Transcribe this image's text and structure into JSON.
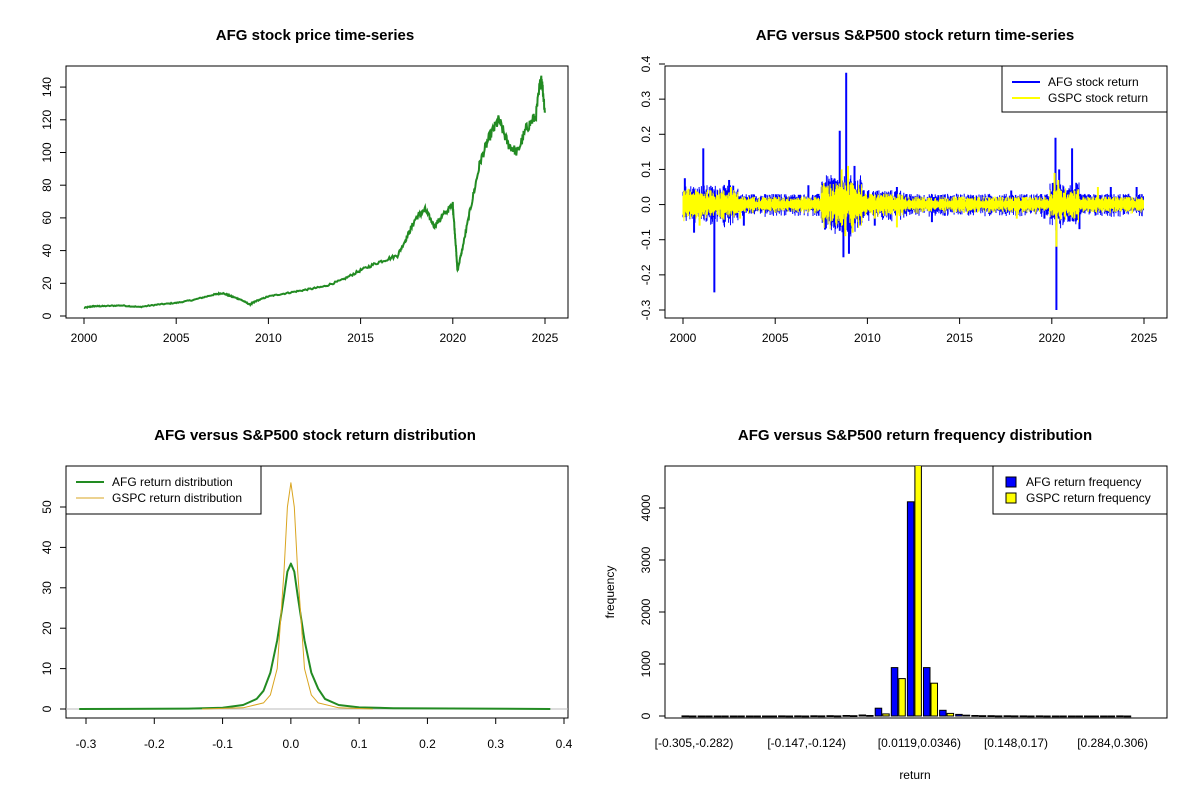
{
  "chart_data": [
    {
      "type": "line",
      "title": "AFG stock price time-series",
      "xlabel": "",
      "ylabel": "",
      "xlim": [
        2000,
        2025
      ],
      "ylim": [
        0,
        148
      ],
      "xticks": [
        "2000",
        "2005",
        "2010",
        "2015",
        "2020",
        "2025"
      ],
      "yticks": [
        "0",
        "20",
        "40",
        "60",
        "80",
        "100",
        "120",
        "140"
      ],
      "series": [
        {
          "color": "#228B22",
          "x": [
            2000,
            2000.5,
            2001,
            2002,
            2003,
            2004,
            2005,
            2006,
            2007,
            2007.5,
            2008,
            2008.5,
            2009,
            2009.3,
            2010,
            2011,
            2012,
            2013,
            2014,
            2015,
            2016,
            2017,
            2017.5,
            2018,
            2018.5,
            2019,
            2019.5,
            2020,
            2020.15,
            2020.25,
            2020.5,
            2021,
            2021.5,
            2022,
            2022.5,
            2023,
            2023.5,
            2024,
            2024.5,
            2024.8,
            2025
          ],
          "y": [
            5,
            6,
            6,
            6.5,
            5.5,
            7,
            8,
            10,
            13,
            14,
            12,
            10,
            7,
            9,
            12,
            14,
            16,
            18,
            22,
            28,
            33,
            37,
            48,
            60,
            65,
            55,
            62,
            68,
            45,
            28,
            40,
            68,
            95,
            110,
            120,
            105,
            100,
            115,
            122,
            147,
            125
          ]
        }
      ]
    },
    {
      "type": "line",
      "title": "AFG versus S&P500 stock return time-series",
      "xlabel": "",
      "ylabel": "",
      "xlim": [
        2000,
        2025
      ],
      "ylim": [
        -0.3,
        0.4
      ],
      "xticks": [
        "2000",
        "2005",
        "2010",
        "2015",
        "2020",
        "2025"
      ],
      "yticks": [
        "-0.3",
        "-0.2",
        "-0.1",
        "0.0",
        "0.1",
        "0.2",
        "0.3",
        "0.4"
      ],
      "legend": "top-right",
      "series": [
        {
          "name": "AFG stock return",
          "color": "#0000FF",
          "x": [
            2000.1,
            2000.6,
            2001.1,
            2001.7,
            2002.5,
            2003.3,
            2006.8,
            2007.7,
            2008.5,
            2008.7,
            2008.85,
            2009.0,
            2009.3,
            2010.4,
            2011.6,
            2013.5,
            2017.8,
            2019.6,
            2020.2,
            2020.25,
            2020.4,
            2021.1,
            2021.5,
            2023.2,
            2024.6
          ],
          "y": [
            0.075,
            -0.08,
            0.16,
            -0.25,
            0.07,
            -0.06,
            0.055,
            -0.07,
            0.21,
            -0.15,
            0.375,
            -0.14,
            0.11,
            -0.06,
            0.05,
            -0.05,
            0.04,
            -0.04,
            0.19,
            -0.3,
            0.1,
            0.16,
            -0.07,
            0.05,
            0.05
          ]
        },
        {
          "name": "GSPC stock return",
          "color": "#FFFF00",
          "x": [
            2000.3,
            2000.9,
            2002.6,
            2003.1,
            2007.7,
            2008.6,
            2008.8,
            2008.95,
            2009.2,
            2010.4,
            2011.6,
            2018.1,
            2020.15,
            2020.25,
            2020.35,
            2022.5
          ],
          "y": [
            0.045,
            -0.06,
            0.05,
            -0.04,
            -0.035,
            0.1,
            -0.09,
            0.11,
            -0.08,
            -0.04,
            -0.065,
            -0.04,
            0.09,
            -0.12,
            0.07,
            0.05
          ]
        }
      ]
    },
    {
      "type": "line",
      "title": "AFG versus S&P500 stock return distribution",
      "xlabel": "",
      "ylabel": "",
      "xlim": [
        -0.32,
        0.4
      ],
      "ylim": [
        0,
        58
      ],
      "xticks": [
        "-0.3",
        "-0.2",
        "-0.1",
        "0.0",
        "0.1",
        "0.2",
        "0.3",
        "0.4"
      ],
      "yticks": [
        "0",
        "10",
        "20",
        "30",
        "40",
        "50"
      ],
      "legend": "top-left",
      "series": [
        {
          "name": "AFG return distribution",
          "color": "#228B22",
          "x": [
            -0.31,
            -0.15,
            -0.1,
            -0.07,
            -0.05,
            -0.04,
            -0.03,
            -0.02,
            -0.01,
            -0.005,
            0,
            0.005,
            0.01,
            0.02,
            0.03,
            0.04,
            0.05,
            0.07,
            0.1,
            0.15,
            0.38
          ],
          "y": [
            0,
            0.1,
            0.3,
            1,
            2.5,
            4.5,
            9,
            17,
            28,
            34,
            36,
            34,
            28,
            17,
            9,
            5,
            2.5,
            1,
            0.4,
            0.2,
            0
          ]
        },
        {
          "name": "GSPC return distribution",
          "color": "#DAA520",
          "x": [
            -0.13,
            -0.07,
            -0.04,
            -0.03,
            -0.02,
            -0.01,
            -0.005,
            0,
            0.005,
            0.01,
            0.02,
            0.03,
            0.04,
            0.07,
            0.12
          ],
          "y": [
            0,
            0.3,
            1.5,
            3.5,
            10,
            34,
            50,
            56,
            50,
            34,
            10,
            3.5,
            1.5,
            0.3,
            0
          ]
        }
      ]
    },
    {
      "type": "bar",
      "title": "AFG versus S&P500 return frequency distribution",
      "xlabel": "return",
      "ylabel": "frequency",
      "ylim": [
        0,
        4900
      ],
      "yticks": [
        "0",
        "1000",
        "2000",
        "3000",
        "4000"
      ],
      "xticks": [
        "[-0.305,-0.282)",
        "[-0.147,-0.124)",
        "[0.0119,0.0346)",
        "[0.148,0.17)",
        "[0.284,0.306)"
      ],
      "legend": "top-right",
      "categories": [
        "[-0.305,-0.282)",
        "",
        "",
        "",
        "",
        "",
        "",
        "[-0.147,-0.124)",
        "",
        "",
        "",
        "",
        "",
        "",
        "[0.0119,0.0346)",
        "",
        "",
        "",
        "",
        "",
        "[0.148,0.17)",
        "",
        "",
        "",
        "",
        "",
        "[0.284,0.306)",
        ""
      ],
      "series": [
        {
          "name": "AFG return frequency",
          "color": "#0000FF",
          "values": [
            1,
            0,
            0,
            0,
            0,
            0,
            1,
            1,
            3,
            5,
            10,
            20,
            150,
            930,
            4120,
            930,
            110,
            30,
            10,
            5,
            3,
            1,
            1,
            0,
            0,
            0,
            0,
            1
          ]
        },
        {
          "name": "GSPC return frequency",
          "color": "#FFFF00",
          "values": [
            0,
            0,
            0,
            0,
            0,
            0,
            0,
            0,
            1,
            2,
            5,
            10,
            40,
            720,
            4900,
            630,
            50,
            15,
            5,
            2,
            1,
            0,
            0,
            0,
            0,
            0,
            0,
            0
          ]
        }
      ]
    }
  ]
}
